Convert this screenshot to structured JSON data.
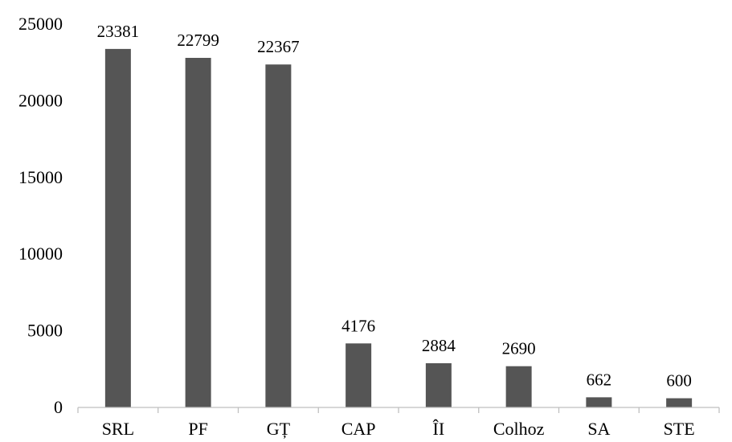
{
  "chart_data": {
    "type": "bar",
    "title": "",
    "xlabel": "",
    "ylabel": "",
    "categories": [
      "SRL",
      "PF",
      "GȚ",
      "CAP",
      "ÎI",
      "Colhoz",
      "SA",
      "STE"
    ],
    "values": [
      23381,
      22799,
      22367,
      4176,
      2884,
      2690,
      662,
      600
    ],
    "data_labels": [
      "23381",
      "22799",
      "22367",
      "4176",
      "2884",
      "2690",
      "662",
      "600"
    ],
    "ylim": [
      0,
      25000
    ],
    "yticks": [
      0,
      5000,
      10000,
      15000,
      20000,
      25000
    ],
    "ytick_labels": [
      "0",
      "5000",
      "10000",
      "15000",
      "20000",
      "25000"
    ],
    "grid": false,
    "legend": "none",
    "bar_color": "#555555"
  }
}
